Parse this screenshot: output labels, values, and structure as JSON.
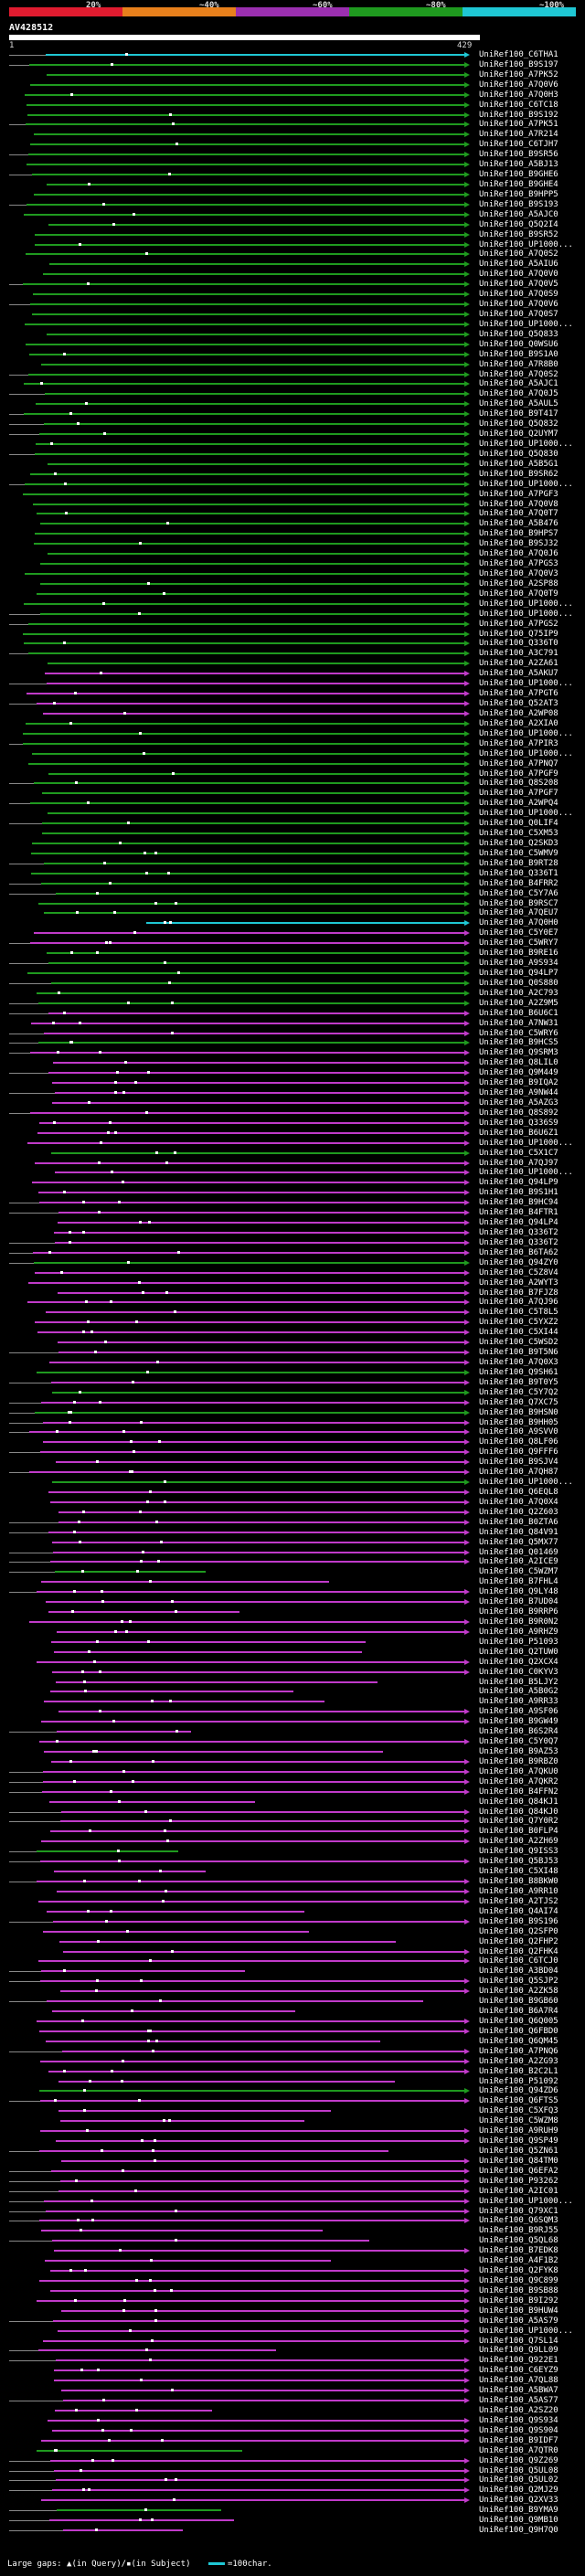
{
  "legend": {
    "labels": [
      "20%",
      "~40%",
      "~60%",
      "~80%",
      "~100%"
    ],
    "colors": [
      "#e01b2f",
      "#e8801c",
      "#9b2fb0",
      "#1f9a1f",
      "#1fc7d4"
    ]
  },
  "query": {
    "label": "AV428512",
    "start": "1",
    "end": "429"
  },
  "hit_names": [
    "UniRef100_C6THA1",
    "UniRef100_B9S197",
    "UniRef100_A7PK52",
    "UniRef100_A7Q0V6",
    "UniRef100_A7Q0H3",
    "UniRef100_C6TC18",
    "UniRef100_B9S192",
    "UniRef100_A7PK51",
    "UniRef100_A7R214",
    "UniRef100_C6TJH7",
    "UniRef100_B9SR56",
    "UniRef100_A5BJ13",
    "UniRef100_B9GHE6",
    "UniRef100_B9GHE4",
    "UniRef100_B9HPP5",
    "UniRef100_B9S193",
    "UniRef100_A5AJC0",
    "UniRef100_Q5Q2I4",
    "UniRef100_B9SR52",
    "UniRef100_UP1000...",
    "UniRef100_A7Q0S2",
    "UniRef100_A5AIU6",
    "UniRef100_A7Q0V0",
    "UniRef100_A7Q0V5",
    "UniRef100_A7Q0S9",
    "UniRef100_A7Q0V6",
    "UniRef100_A7Q0S7",
    "UniRef100_UP1000...",
    "UniRef100_Q5Q833",
    "UniRef100_Q0WSU6",
    "UniRef100_B9S1A0",
    "UniRef100_A7R8B0",
    "UniRef100_A7Q0S2",
    "UniRef100_A5AJC1",
    "UniRef100_A7Q0J5",
    "UniRef100_A5AUL5",
    "UniRef100_B9T417",
    "UniRef100_Q5Q832",
    "UniRef100_Q2UYM7",
    "UniRef100_UP1000...",
    "UniRef100_Q5Q830",
    "UniRef100_A5B5G1",
    "UniRef100_B9SR62",
    "UniRef100_UP1000...",
    "UniRef100_A7PGF3",
    "UniRef100_A7Q0V8",
    "UniRef100_A7Q0T7",
    "UniRef100_A5B476",
    "UniRef100_B9HPS7",
    "UniRef100_B9SJ32",
    "UniRef100_A7Q0J6",
    "UniRef100_A7PGS3",
    "UniRef100_A7Q0V3",
    "UniRef100_A2SP88",
    "UniRef100_A7Q0T9",
    "UniRef100_UP1000...",
    "UniRef100_UP1000...",
    "UniRef100_A7PGS2",
    "UniRef100_Q75IP9",
    "UniRef100_Q336T0",
    "UniRef100_A3C791",
    "UniRef100_A2ZA61",
    "UniRef100_A5AKU7",
    "UniRef100_UP1000...",
    "UniRef100_A7PGT6",
    "UniRef100_Q52AT3",
    "UniRef100_A2WP08",
    "UniRef100_A2XIA0",
    "UniRef100_UP1000...",
    "UniRef100_A7PIR3",
    "UniRef100_UP1000...",
    "UniRef100_A7PNQ7",
    "UniRef100_A7PGF9",
    "UniRef100_Q8S208",
    "UniRef100_A7PGF7",
    "UniRef100_A2WPQ4",
    "UniRef100_UP1000...",
    "UniRef100_Q0LIF4",
    "UniRef100_C5XM53",
    "UniRef100_Q2SKD3",
    "UniRef100_C5WMV9",
    "UniRef100_B9RT28",
    "UniRef100_Q336T1",
    "UniRef100_B4FRR2",
    "UniRef100_C5Y7A6",
    "UniRef100_B9RSC7",
    "UniRef100_A7QEU7",
    "UniRef100_A7Q0H0",
    "UniRef100_C5Y0E7",
    "UniRef100_C5WRY7",
    "UniRef100_B9RE16",
    "UniRef100_A9S934",
    "UniRef100_Q94LP7",
    "UniRef100_Q0S880",
    "UniRef100_A2C793",
    "UniRef100_A2Z9M5",
    "UniRef100_B6U6C1",
    "UniRef100_A7NW31",
    "UniRef100_C5WRY6",
    "UniRef100_B9HCS5",
    "UniRef100_Q9SRM3",
    "UniRef100_Q8LIL0",
    "UniRef100_Q9M449",
    "UniRef100_B9IQA2",
    "UniRef100_A9NW44",
    "UniRef100_A5AZG3",
    "UniRef100_Q8S892",
    "UniRef100_Q336S9",
    "UniRef100_B6U6Z1",
    "UniRef100_UP1000...",
    "UniRef100_C5X1C7",
    "UniRef100_A7QJ97",
    "UniRef100_UP1000...",
    "UniRef100_Q94LP9",
    "UniRef100_B9S1H1",
    "UniRef100_B9HC94",
    "UniRef100_B4FTR1",
    "UniRef100_Q94LP4",
    "UniRef100_Q336T2",
    "UniRef100_Q336T2",
    "UniRef100_B6TA62",
    "UniRef100_Q94ZY0",
    "UniRef100_C5Z8V4",
    "UniRef100_A2WYT3",
    "UniRef100_B7FJZ8",
    "UniRef100_A7QJ96",
    "UniRef100_C5T8L5",
    "UniRef100_C5YXZ2",
    "UniRef100_C5XI44",
    "UniRef100_C5WSD2",
    "UniRef100_B9T5N6",
    "UniRef100_A7Q0X3",
    "UniRef100_Q9SH61",
    "UniRef100_B9T0Y5",
    "UniRef100_C5Y7Q2",
    "UniRef100_Q7XC75",
    "UniRef100_B9HSN0",
    "UniRef100_B9HH05",
    "UniRef100_A9SVV0",
    "UniRef100_Q8LF06",
    "UniRef100_Q9FFF6",
    "UniRef100_B9SJV4",
    "UniRef100_A7QH87",
    "UniRef100_UP1000...",
    "UniRef100_Q6EQL8",
    "UniRef100_A7Q0X4",
    "UniRef100_Q2Z603",
    "UniRef100_B0ZTA6",
    "UniRef100_Q84V91",
    "UniRef100_Q5MX77",
    "UniRef100_Q01469",
    "UniRef100_A2ICE9",
    "UniRef100_C5WZM7",
    "UniRef100_B7FHL4",
    "UniRef100_Q9LY48",
    "UniRef100_B7UD04",
    "UniRef100_B9RRP6",
    "UniRef100_B9R0N2",
    "UniRef100_A9RHZ9",
    "UniRef100_P51093",
    "UniRef100_Q2TUW0",
    "UniRef100_Q2XCX4",
    "UniRef100_C0KYV3",
    "UniRef100_B5LJY2",
    "UniRef100_A5B0G2",
    "UniRef100_A9RR33",
    "UniRef100_A9SF06",
    "UniRef100_B9GW49",
    "UniRef100_B6S2R4",
    "UniRef100_C5Y0Q7",
    "UniRef100_B9AZ53",
    "UniRef100_B9RBZ0",
    "UniRef100_A7QKU0",
    "UniRef100_A7QKR2",
    "UniRef100_B4FFN2",
    "UniRef100_Q84KJ1",
    "UniRef100_Q84KJ0",
    "UniRef100_Q7Y0R2",
    "UniRef100_B0FLP4",
    "UniRef100_A2ZH69",
    "UniRef100_Q9ISS3",
    "UniRef100_Q5BJ53",
    "UniRef100_C5XI48",
    "UniRef100_B8BKW0",
    "UniRef100_A9RR10",
    "UniRef100_A2TJS2",
    "UniRef100_Q4AI74",
    "UniRef100_B9S196",
    "UniRef100_Q2SFP0",
    "UniRef100_Q2FHP2",
    "UniRef100_Q2FHK4",
    "UniRef100_C6TCJ0",
    "UniRef100_A3BD04",
    "UniRef100_Q5SJP2",
    "UniRef100_A2ZK58",
    "UniRef100_B9GB60",
    "UniRef100_B6A7R4",
    "UniRef100_Q6Q005",
    "UniRef100_Q6FBD0",
    "UniRef100_Q6QM45",
    "UniRef100_A7PNQ6",
    "UniRef100_A2ZG93",
    "UniRef100_B2C2L1",
    "UniRef100_P51092",
    "UniRef100_Q94ZD6",
    "UniRef100_Q6FTS5",
    "UniRef100_C5XFQ3",
    "UniRef100_C5WZM8",
    "UniRef100_A9RUH9",
    "UniRef100_Q9SP49",
    "UniRef100_Q5ZN61",
    "UniRef100_Q84TM0",
    "UniRef100_Q6EFA2",
    "UniRef100_P93262",
    "UniRef100_A2IC01",
    "UniRef100_UP1000...",
    "UniRef100_Q79XC1",
    "UniRef100_Q6SQM3",
    "UniRef100_B9RJ55",
    "UniRef100_Q5QL68",
    "UniRef100_B7EDK8",
    "UniRef100_A4F1B2",
    "UniRef100_Q2FYK8",
    "UniRef100_Q9C899",
    "UniRef100_B9SB88",
    "UniRef100_B9I292",
    "UniRef100_B9HUW4",
    "UniRef100_A5AS79",
    "UniRef100_UP1000...",
    "UniRef100_Q7SL14",
    "UniRef100_Q9LL09",
    "UniRef100_Q922E1",
    "UniRef100_C6EYZ9",
    "UniRef100_A7QL88",
    "UniRef100_A5BWA7",
    "UniRef100_A5AS77",
    "UniRef100_A2SZ20",
    "UniRef100_Q9S934",
    "UniRef100_Q9S904",
    "UniRef100_B9IDF7",
    "UniRef100_A7QTR0",
    "UniRef100_Q9Z269",
    "UniRef100_Q5UL08",
    "UniRef100_Q5UL02",
    "UniRef100_Q2MJ29",
    "UniRef100_Q2XV33",
    "UniRef100_B9YMA9",
    "UniRef100_Q9MB10",
    "UniRef100_Q9H7Q0"
  ],
  "footer": {
    "large_gaps": "Large gaps:",
    "in_query": "(in Query)",
    "sep": "/",
    "in_subject": "(in Subject)",
    "key_label": "=100char."
  }
}
